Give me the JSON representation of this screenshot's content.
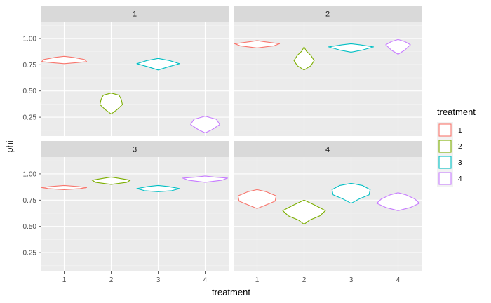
{
  "chart_data": {
    "type": "violin",
    "xlabel": "treatment",
    "ylabel": "phi",
    "x_categories": [
      "1",
      "2",
      "3",
      "4"
    ],
    "y_ticks": [
      0.25,
      0.5,
      0.75,
      1.0
    ],
    "y_tick_labels": [
      "0.25",
      "0.50",
      "0.75",
      "1.00"
    ],
    "ylim": [
      0.07,
      1.16
    ],
    "grid": true,
    "legend": {
      "title": "treatment",
      "position": "right",
      "entries": [
        "1",
        "2",
        "3",
        "4"
      ]
    },
    "colors": {
      "1": "#F8766D",
      "2": "#7CAE00",
      "3": "#00BFC4",
      "4": "#C77CFF"
    },
    "panels": [
      {
        "label": "1",
        "violins": [
          {
            "treatment": "1",
            "profile": [
              [
                0.76,
                0.0
              ],
              [
                0.77,
                0.55
              ],
              [
                0.78,
                1.0
              ],
              [
                0.8,
                0.9
              ],
              [
                0.82,
                0.4
              ],
              [
                0.83,
                0.0
              ]
            ]
          },
          {
            "treatment": "2",
            "profile": [
              [
                0.28,
                0.0
              ],
              [
                0.32,
                0.25
              ],
              [
                0.37,
                0.5
              ],
              [
                0.42,
                0.45
              ],
              [
                0.46,
                0.35
              ],
              [
                0.48,
                0.0
              ]
            ]
          },
          {
            "treatment": "3",
            "profile": [
              [
                0.7,
                0.0
              ],
              [
                0.73,
                0.45
              ],
              [
                0.76,
                0.95
              ],
              [
                0.79,
                0.5
              ],
              [
                0.81,
                0.0
              ]
            ]
          },
          {
            "treatment": "4",
            "profile": [
              [
                0.1,
                0.0
              ],
              [
                0.13,
                0.3
              ],
              [
                0.18,
                0.65
              ],
              [
                0.23,
                0.5
              ],
              [
                0.26,
                0.0
              ]
            ]
          }
        ]
      },
      {
        "label": "2",
        "violins": [
          {
            "treatment": "1",
            "profile": [
              [
                0.91,
                0.0
              ],
              [
                0.93,
                0.75
              ],
              [
                0.95,
                1.0
              ],
              [
                0.97,
                0.3
              ],
              [
                0.98,
                0.0
              ]
            ]
          },
          {
            "treatment": "2",
            "profile": [
              [
                0.7,
                0.0
              ],
              [
                0.74,
                0.3
              ],
              [
                0.79,
                0.45
              ],
              [
                0.84,
                0.3
              ],
              [
                0.88,
                0.1
              ],
              [
                0.92,
                0.0
              ]
            ]
          },
          {
            "treatment": "3",
            "profile": [
              [
                0.87,
                0.0
              ],
              [
                0.89,
                0.5
              ],
              [
                0.92,
                1.0
              ],
              [
                0.94,
                0.4
              ],
              [
                0.95,
                0.0
              ]
            ]
          },
          {
            "treatment": "4",
            "profile": [
              [
                0.85,
                0.0
              ],
              [
                0.89,
                0.3
              ],
              [
                0.94,
                0.55
              ],
              [
                0.97,
                0.3
              ],
              [
                0.99,
                0.0
              ]
            ]
          }
        ]
      },
      {
        "label": "3",
        "violins": [
          {
            "treatment": "1",
            "profile": [
              [
                0.85,
                0.0
              ],
              [
                0.86,
                0.7
              ],
              [
                0.87,
                1.0
              ],
              [
                0.88,
                0.6
              ],
              [
                0.89,
                0.0
              ]
            ]
          },
          {
            "treatment": "2",
            "profile": [
              [
                0.9,
                0.0
              ],
              [
                0.92,
                0.7
              ],
              [
                0.94,
                0.85
              ],
              [
                0.96,
                0.3
              ],
              [
                0.97,
                0.0
              ]
            ]
          },
          {
            "treatment": "3",
            "profile": [
              [
                0.83,
                0.0
              ],
              [
                0.84,
                0.6
              ],
              [
                0.86,
                0.95
              ],
              [
                0.88,
                0.45
              ],
              [
                0.89,
                0.0
              ]
            ]
          },
          {
            "treatment": "4",
            "profile": [
              [
                0.92,
                0.0
              ],
              [
                0.94,
                0.75
              ],
              [
                0.96,
                1.0
              ],
              [
                0.97,
                0.4
              ],
              [
                0.98,
                0.0
              ]
            ]
          }
        ]
      },
      {
        "label": "4",
        "violins": [
          {
            "treatment": "1",
            "profile": [
              [
                0.67,
                0.0
              ],
              [
                0.7,
                0.35
              ],
              [
                0.74,
                0.8
              ],
              [
                0.79,
                0.85
              ],
              [
                0.83,
                0.4
              ],
              [
                0.85,
                0.0
              ]
            ]
          },
          {
            "treatment": "2",
            "profile": [
              [
                0.52,
                0.0
              ],
              [
                0.56,
                0.25
              ],
              [
                0.6,
                0.7
              ],
              [
                0.65,
                0.95
              ],
              [
                0.7,
                0.5
              ],
              [
                0.73,
                0.2
              ],
              [
                0.75,
                0.0
              ]
            ]
          },
          {
            "treatment": "3",
            "profile": [
              [
                0.72,
                0.0
              ],
              [
                0.76,
                0.35
              ],
              [
                0.8,
                0.8
              ],
              [
                0.85,
                0.85
              ],
              [
                0.89,
                0.5
              ],
              [
                0.91,
                0.0
              ]
            ]
          },
          {
            "treatment": "4",
            "profile": [
              [
                0.65,
                0.0
              ],
              [
                0.68,
                0.55
              ],
              [
                0.72,
                0.95
              ],
              [
                0.76,
                0.75
              ],
              [
                0.8,
                0.35
              ],
              [
                0.82,
                0.0
              ]
            ]
          }
        ]
      }
    ]
  }
}
